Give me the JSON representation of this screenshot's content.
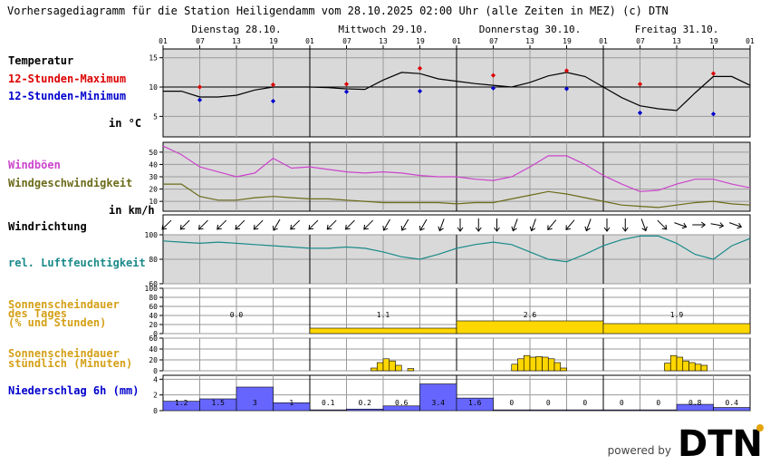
{
  "title": "Vorhersagediagramm für die Station Heiligendamm vom 28.10.2025 02:00 Uhr (alle Zeiten in MEZ)   (c) DTN",
  "days": [
    "Dienstag 28.10.",
    "Mittwoch 29.10.",
    "Donnerstag 30.10.",
    "Freitag 31.10."
  ],
  "hour_ticks": [
    "01",
    "07",
    "13",
    "19"
  ],
  "hour_end": "01",
  "labels": {
    "temperatur": "Temperatur",
    "max12": "12-Stunden-Maximum",
    "min12": "12-Stunden-Minimum",
    "temp_unit": "in °C",
    "windboeen": "Windböen",
    "windgeschw": "Windgeschwindigkeit",
    "wind_unit": "in km/h",
    "windrichtung": "Windrichtung",
    "feuchte": "rel. Luftfeuchtigkeit",
    "sonne_tag_1": "Sonnenscheindauer",
    "sonne_tag_2": "des Tages",
    "sonne_tag_3": "(% und Stunden)",
    "sonne_std_1": "Sonnenscheindauer",
    "sonne_std_2": "stündlich (Minuten)",
    "niederschlag": "Niederschlag 6h (mm)"
  },
  "footer": {
    "powered": "powered by",
    "brand": "DTN"
  },
  "colors": {
    "temperature": "#000000",
    "max": "#dd0000",
    "min": "#0000cc",
    "gusts": "#cc44cc",
    "wind": "#6b6b1a",
    "humidity": "#1a8a8a",
    "sun": "#ffd700",
    "sun_label": "#d4a017",
    "precip": "#6666ff",
    "precip_label": "#0000cc",
    "panel": "#d9d9d9"
  },
  "chart_data": [
    {
      "type": "line",
      "title": "Temperatur",
      "ylabel": "in °C",
      "ylim": [
        1.5,
        16.5
      ],
      "yticks": [
        5,
        10,
        15
      ],
      "x": [
        1,
        4,
        7,
        10,
        13,
        16,
        19,
        22,
        25,
        28,
        31,
        34,
        37,
        40,
        43,
        46,
        49,
        52,
        55,
        58,
        61,
        64,
        67,
        70,
        73,
        76,
        79,
        82,
        85,
        88,
        91,
        94,
        97
      ],
      "series": [
        {
          "name": "Temperatur",
          "values": [
            9.3,
            9.3,
            8.3,
            8.3,
            8.6,
            9.5,
            10.0,
            10.0,
            10.0,
            9.9,
            9.7,
            9.6,
            11.2,
            12.5,
            12.3,
            11.4,
            11.0,
            10.6,
            10.3,
            10.0,
            10.8,
            11.9,
            12.5,
            11.8,
            10.0,
            8.2,
            6.8,
            6.3,
            6.0,
            9.0,
            11.8,
            11.8,
            10.3
          ]
        },
        {
          "name": "12-Stunden-Maximum",
          "x": [
            7,
            19,
            31,
            43,
            55,
            67,
            79,
            91
          ],
          "values": [
            10.0,
            10.4,
            10.5,
            13.2,
            12.0,
            12.8,
            10.5,
            12.3
          ]
        },
        {
          "name": "12-Stunden-Minimum",
          "x": [
            7,
            19,
            31,
            43,
            55,
            67,
            79,
            91
          ],
          "values": [
            7.8,
            7.6,
            9.2,
            9.3,
            9.8,
            9.7,
            5.6,
            5.4
          ]
        }
      ]
    },
    {
      "type": "line",
      "title": "Wind",
      "ylabel": "in km/h",
      "ylim": [
        2,
        58
      ],
      "yticks": [
        10,
        20,
        30,
        40,
        50
      ],
      "x": [
        1,
        4,
        7,
        10,
        13,
        16,
        19,
        22,
        25,
        28,
        31,
        34,
        37,
        40,
        43,
        46,
        49,
        52,
        55,
        58,
        61,
        64,
        67,
        70,
        73,
        76,
        79,
        82,
        85,
        88,
        91,
        94,
        97
      ],
      "series": [
        {
          "name": "Windböen",
          "values": [
            55,
            48,
            38,
            34,
            30,
            33,
            45,
            37,
            38,
            36,
            34,
            33,
            34,
            33,
            31,
            30,
            30,
            28,
            27,
            30,
            38,
            47,
            47,
            40,
            31,
            24,
            18,
            19,
            24,
            28,
            28,
            24,
            21
          ]
        },
        {
          "name": "Windgeschwindigkeit",
          "values": [
            24,
            24,
            14,
            11,
            11,
            13,
            14,
            13,
            12,
            12,
            11,
            10,
            9,
            9,
            9,
            9,
            8,
            9,
            9,
            12,
            15,
            18,
            16,
            13,
            10,
            7,
            6,
            5,
            7,
            9,
            10,
            8,
            7
          ]
        }
      ]
    },
    {
      "type": "line",
      "title": "Windrichtung",
      "x": [
        1,
        4,
        7,
        10,
        13,
        16,
        19,
        22,
        25,
        28,
        31,
        34,
        37,
        40,
        43,
        46,
        49,
        52,
        55,
        58,
        61,
        64,
        67,
        70,
        73,
        76,
        79,
        82,
        85,
        88,
        91,
        94,
        97
      ],
      "series": [
        {
          "name": "Windrichtung",
          "values": [
            225,
            225,
            225,
            225,
            225,
            225,
            210,
            225,
            225,
            225,
            225,
            225,
            210,
            210,
            210,
            200,
            180,
            180,
            180,
            200,
            200,
            220,
            220,
            200,
            180,
            180,
            160,
            135,
            110,
            90,
            100,
            110,
            135
          ]
        }
      ]
    },
    {
      "type": "line",
      "title": "rel. Luftfeuchtigkeit",
      "ylim": [
        60,
        100
      ],
      "yticks": [
        60,
        80,
        100
      ],
      "x": [
        1,
        4,
        7,
        10,
        13,
        16,
        19,
        22,
        25,
        28,
        31,
        34,
        37,
        40,
        43,
        46,
        49,
        52,
        55,
        58,
        61,
        64,
        67,
        70,
        73,
        76,
        79,
        82,
        85,
        88,
        91,
        94,
        97
      ],
      "series": [
        {
          "name": "rel. Luftfeuchtigkeit",
          "values": [
            95,
            94,
            93,
            94,
            93,
            92,
            91,
            90,
            89,
            89,
            90,
            89,
            86,
            82,
            80,
            84,
            89,
            92,
            94,
            92,
            86,
            80,
            78,
            84,
            91,
            96,
            99,
            99,
            93,
            84,
            80,
            91,
            97
          ]
        }
      ]
    },
    {
      "type": "bar",
      "title": "Sonnenscheindauer des Tages (% und Stunden)",
      "ylim": [
        0,
        100
      ],
      "yticks": [
        0,
        20,
        40,
        60,
        80,
        100
      ],
      "categories": [
        "Dienstag 28.10.",
        "Mittwoch 29.10.",
        "Donnerstag 30.10.",
        "Freitag 31.10."
      ],
      "values": [
        0,
        12,
        28,
        22
      ],
      "labels": [
        "0.0",
        "1.1",
        "2.6",
        "1.9"
      ]
    },
    {
      "type": "bar",
      "title": "Sonnenscheindauer stündlich (Minuten)",
      "ylim": [
        0,
        60
      ],
      "yticks": [
        0,
        20,
        40,
        60
      ],
      "x": [
        35,
        36,
        37,
        38,
        39,
        41,
        58,
        59,
        60,
        61,
        62,
        63,
        64,
        65,
        66,
        67,
        83,
        84,
        85,
        86,
        87,
        88,
        89
      ],
      "values": [
        5,
        15,
        22,
        18,
        10,
        4,
        12,
        22,
        28,
        25,
        26,
        25,
        22,
        15,
        5,
        0,
        14,
        28,
        25,
        18,
        15,
        12,
        10
      ]
    },
    {
      "type": "bar",
      "title": "Niederschlag 6h (mm)",
      "ylim": [
        0,
        4.5
      ],
      "yticks": [
        0,
        2,
        4
      ],
      "x": [
        4,
        10,
        16,
        22,
        28,
        34,
        40,
        46,
        52,
        58,
        64,
        70,
        76,
        82,
        88,
        94
      ],
      "values": [
        1.2,
        1.5,
        3,
        1,
        0.1,
        0.2,
        0.6,
        3.4,
        1.6,
        0,
        0,
        0,
        0,
        0,
        0.8,
        0.4
      ],
      "labels": [
        "1.2",
        "1.5",
        "3",
        "1",
        "0.1",
        "0.2",
        "0.6",
        "3.4",
        "1.6",
        "0",
        "0",
        "0",
        "0",
        "0",
        "0.8",
        "0.4"
      ]
    }
  ]
}
